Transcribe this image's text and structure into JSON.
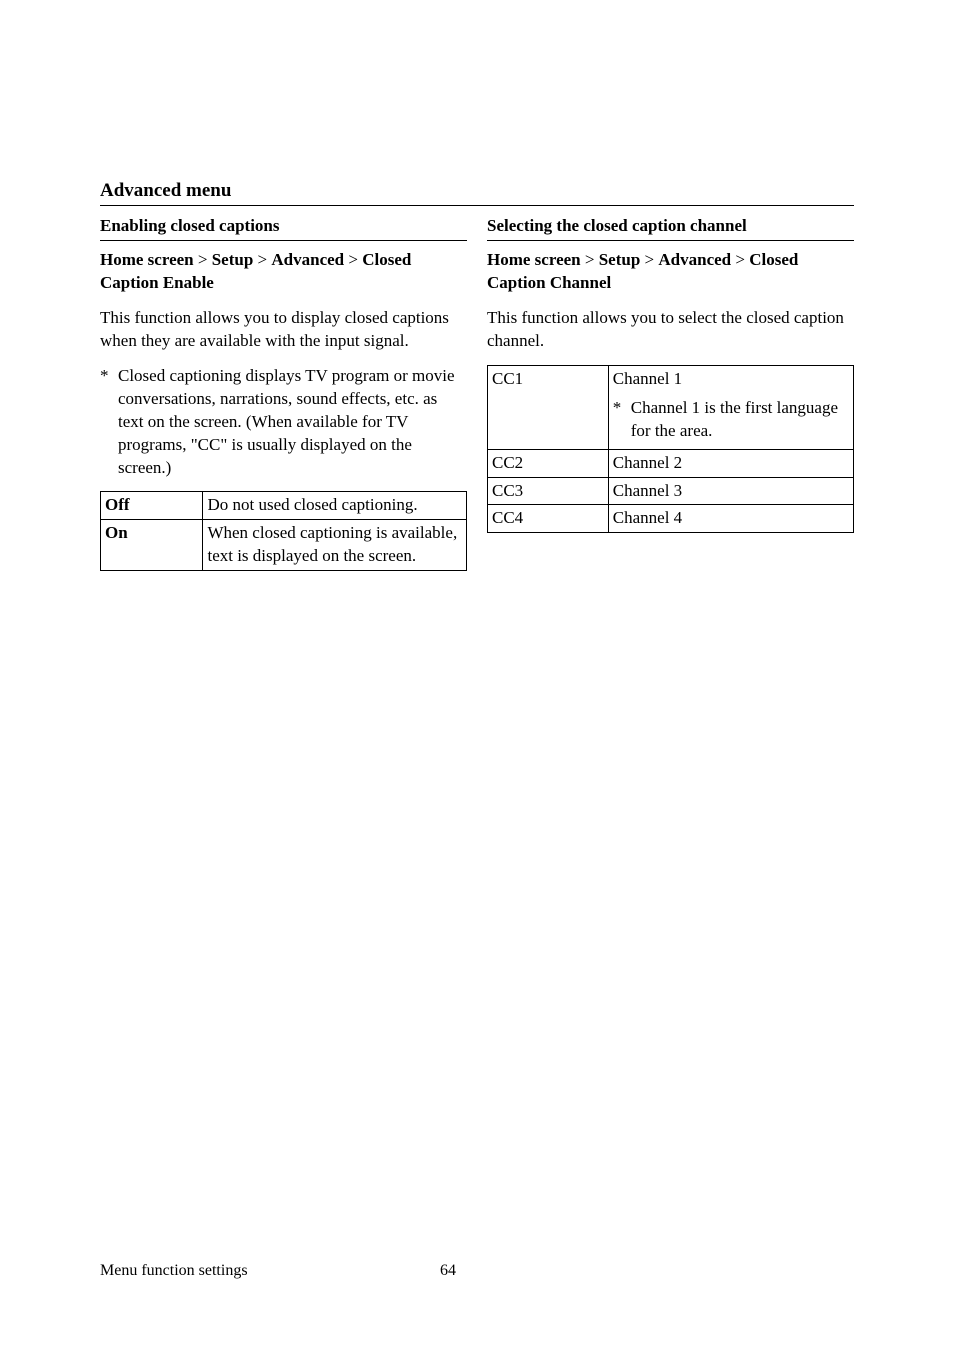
{
  "section_title": "Advanced menu",
  "left": {
    "subsection": "Enabling closed captions",
    "breadcrumb_parts": [
      "Home screen",
      "Setup",
      "Advanced",
      "Closed Caption Enable"
    ],
    "intro": "This function allows you to display closed captions when they are available with the input signal.",
    "note": "Closed captioning displays TV program or movie conversations, narrations, sound effects, etc. as text on the screen. (When available for TV programs, \"CC\" is usually displayed on the screen.)",
    "table": {
      "col_widths": [
        "28%",
        "72%"
      ],
      "rows": [
        {
          "key": "Off",
          "desc": "Do not used closed captioning."
        },
        {
          "key": "On",
          "desc": "When closed captioning is available, text is displayed on the screen."
        }
      ]
    }
  },
  "right": {
    "subsection": "Selecting the closed caption channel",
    "breadcrumb_parts": [
      "Home screen",
      "Setup",
      "Advanced",
      "Closed Caption Channel"
    ],
    "intro": "This function allows you to select the closed caption channel.",
    "table": {
      "col_widths": [
        "33%",
        "67%"
      ],
      "rows": [
        {
          "key": "CC1",
          "desc": "Channel 1",
          "subnote": "Channel 1 is the first language for the area."
        },
        {
          "key": "CC2",
          "desc": "Channel 2"
        },
        {
          "key": "CC3",
          "desc": "Channel 3"
        },
        {
          "key": "CC4",
          "desc": "Channel 4"
        }
      ]
    }
  },
  "footer": {
    "text": "Menu function settings",
    "page": "64"
  },
  "style": {
    "font_family": "Times New Roman",
    "body_fontsize_pt": 12,
    "title_fontsize_pt": 14,
    "text_color": "#000000",
    "background_color": "#ffffff",
    "border_color": "#000000"
  }
}
